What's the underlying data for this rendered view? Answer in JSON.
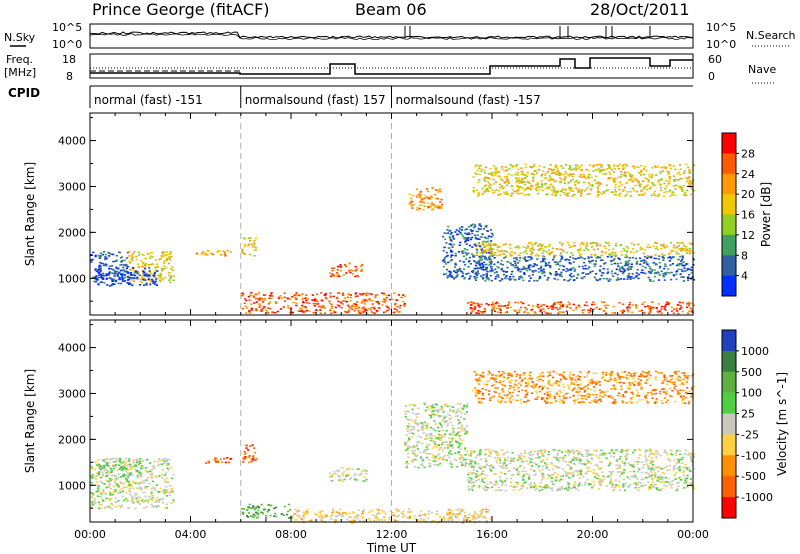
{
  "header": {
    "station": "Prince George (fitACF)",
    "beam": "Beam 06",
    "date": "28/Oct/2011"
  },
  "top_panel_labels": {
    "nsky": "N.Sky",
    "nsearch": "N.Search",
    "freq": "Freq.",
    "freq_unit": "[MHz]",
    "nave": "Nave",
    "cpid": "CPID",
    "nsky_ticks": [
      "10^5",
      "10^0"
    ],
    "nsearch_ticks": [
      "10^5",
      "10^0"
    ],
    "freq_ticks": [
      "18",
      "8"
    ],
    "nave_ticks": [
      "60",
      "0"
    ]
  },
  "cpid_segments": [
    {
      "label": "normal (fast) -151",
      "start_h": 0,
      "end_h": 6
    },
    {
      "label": "normalsound (fast) 157",
      "start_h": 6,
      "end_h": 12
    },
    {
      "label": "normalsound (fast) -157",
      "start_h": 12,
      "end_h": 24
    }
  ],
  "chart_data": [
    {
      "type": "heatmap",
      "title": "",
      "xlabel": "",
      "ylabel": "Slant Range [km]",
      "xlim": [
        0,
        24
      ],
      "ylim": [
        200,
        4600
      ],
      "x_ticks": [
        "00:00",
        "04:00",
        "08:00",
        "12:00",
        "16:00",
        "20:00",
        "00:00"
      ],
      "y_ticks": [
        "1000",
        "2000",
        "3000",
        "4000"
      ],
      "colorbar": {
        "label": "Power [dB]",
        "ticks": [
          "28",
          "24",
          "20",
          "16",
          "12",
          "8",
          "4"
        ],
        "colors": [
          "#ff0000",
          "#ff5a00",
          "#ff9a00",
          "#f0c800",
          "#90d020",
          "#40a060",
          "#3060a0",
          "#0030ff"
        ]
      },
      "patches": [
        {
          "t0": 0.0,
          "t1": 1.5,
          "r0": 900,
          "r1": 1600,
          "level": 6
        },
        {
          "t0": 1.5,
          "t1": 3.3,
          "r0": 900,
          "r1": 1600,
          "level": 3
        },
        {
          "t0": 0.1,
          "t1": 2.7,
          "r0": 850,
          "r1": 1250,
          "level": 7
        },
        {
          "t0": 4.2,
          "t1": 5.6,
          "r0": 1500,
          "r1": 1620,
          "level": 2
        },
        {
          "t0": 6.0,
          "t1": 6.6,
          "r0": 1500,
          "r1": 1900,
          "level": 3
        },
        {
          "t0": 6.0,
          "t1": 12.5,
          "r0": 250,
          "r1": 700,
          "level": 1
        },
        {
          "t0": 9.5,
          "t1": 10.8,
          "r0": 1050,
          "r1": 1350,
          "level": 1
        },
        {
          "t0": 12.6,
          "t1": 14.0,
          "r0": 2500,
          "r1": 3000,
          "level": 2
        },
        {
          "t0": 14.0,
          "t1": 16.0,
          "r0": 1000,
          "r1": 2200,
          "level": 6
        },
        {
          "t0": 15.3,
          "t1": 24.0,
          "r0": 950,
          "r1": 1500,
          "level": 6
        },
        {
          "t0": 15.3,
          "t1": 24.0,
          "r0": 1500,
          "r1": 1800,
          "level": 3
        },
        {
          "t0": 15.2,
          "t1": 24.0,
          "r0": 2800,
          "r1": 3500,
          "level": 3
        },
        {
          "t0": 15.0,
          "t1": 24.0,
          "r0": 250,
          "r1": 500,
          "level": 1
        }
      ]
    },
    {
      "type": "heatmap",
      "title": "",
      "xlabel": "Time UT",
      "ylabel": "Slant Range [km]",
      "xlim": [
        0,
        24
      ],
      "ylim": [
        200,
        4600
      ],
      "x_ticks": [
        "00:00",
        "04:00",
        "08:00",
        "12:00",
        "16:00",
        "20:00",
        "00:00"
      ],
      "y_ticks": [
        "1000",
        "2000",
        "3000",
        "4000"
      ],
      "colorbar": {
        "label": "Velocity [m s^-1]",
        "ticks": [
          "1000",
          "500",
          "100",
          "25",
          "-25",
          "-100",
          "-500",
          "-1000"
        ],
        "colors": [
          "#2040c0",
          "#3a8040",
          "#60b040",
          "#50d040",
          "#c8c8c0",
          "#ffd040",
          "#ff9000",
          "#ff6000",
          "#ff0000"
        ]
      },
      "patches": [
        {
          "t0": 0.0,
          "t1": 3.3,
          "r0": 500,
          "r1": 1600,
          "level": 4
        },
        {
          "t0": 0.3,
          "t1": 2.0,
          "r0": 1200,
          "r1": 1600,
          "level": 3
        },
        {
          "t0": 4.3,
          "t1": 5.6,
          "r0": 1500,
          "r1": 1620,
          "level": 7
        },
        {
          "t0": 6.0,
          "t1": 6.6,
          "r0": 1500,
          "r1": 1900,
          "level": 7
        },
        {
          "t0": 6.0,
          "t1": 8.0,
          "r0": 300,
          "r1": 600,
          "level": 2
        },
        {
          "t0": 9.5,
          "t1": 11.0,
          "r0": 1100,
          "r1": 1400,
          "level": 4
        },
        {
          "t0": 12.5,
          "t1": 15.0,
          "r0": 1400,
          "r1": 2800,
          "level": 4
        },
        {
          "t0": 15.0,
          "t1": 24.0,
          "r0": 900,
          "r1": 1800,
          "level": 4
        },
        {
          "t0": 15.2,
          "t1": 24.0,
          "r0": 2800,
          "r1": 3500,
          "level": 6
        },
        {
          "t0": 8.0,
          "t1": 16.0,
          "r0": 200,
          "r1": 500,
          "level": 5
        }
      ]
    }
  ]
}
